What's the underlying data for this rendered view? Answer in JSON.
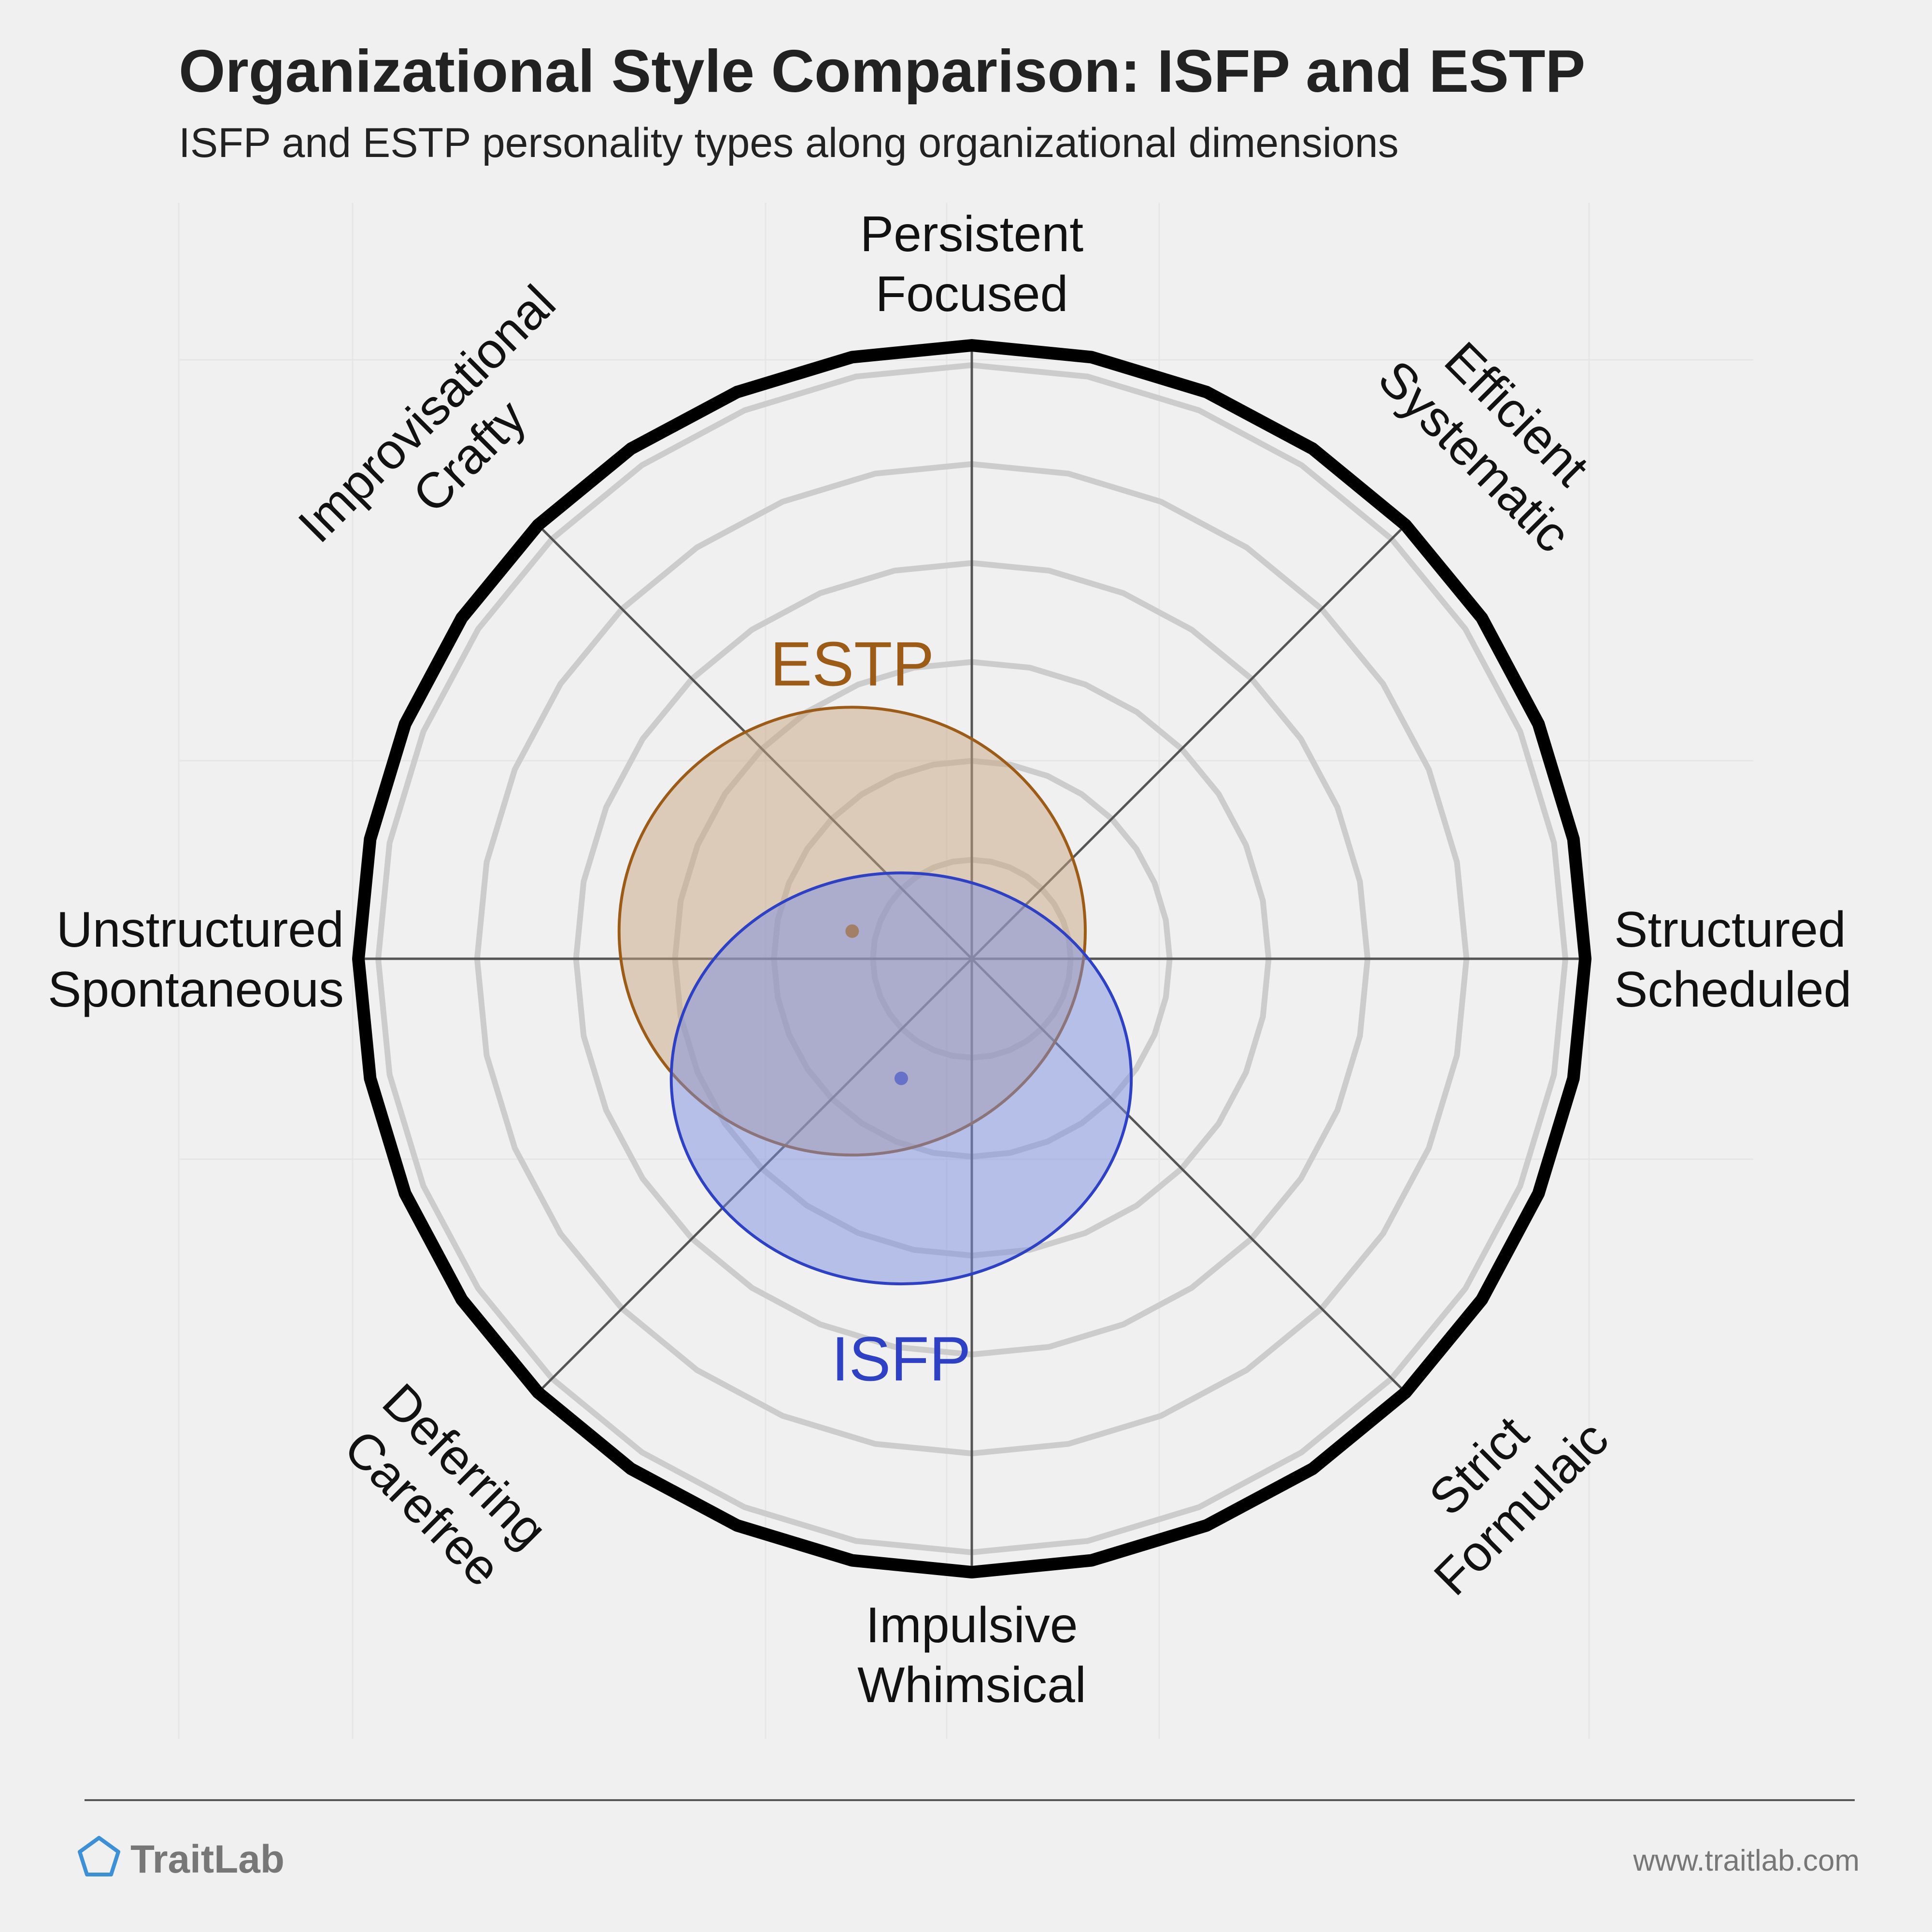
{
  "chart_data": {
    "type": "radar-overlap",
    "title": "Organizational Style Comparison: ISFP and ESTP",
    "subtitle": "ISFP and ESTP personality types along organizational dimensions",
    "axes": [
      {
        "lines": [
          "Persistent",
          "Focused"
        ]
      },
      {
        "lines": [
          "Efficient",
          "Systematic"
        ]
      },
      {
        "lines": [
          "Structured",
          "Scheduled"
        ]
      },
      {
        "lines": [
          "Strict",
          "Formulaic"
        ]
      },
      {
        "lines": [
          "Impulsive",
          "Whimsical"
        ]
      },
      {
        "lines": [
          "Deferring",
          "Carefree"
        ]
      },
      {
        "lines": [
          "Unstructured",
          "Spontaneous"
        ]
      },
      {
        "lines": [
          "Improvisational",
          "Crafty"
        ]
      }
    ],
    "rings": 6,
    "series": [
      {
        "name": "ESTP",
        "center": {
          "x": -0.195,
          "y": 0.045
        },
        "spread": {
          "rx": 0.38,
          "ry": 0.365
        },
        "color": "#9c5b16",
        "fill": "#c8a57f"
      },
      {
        "name": "ISFP",
        "center": {
          "x": -0.115,
          "y": -0.195
        },
        "spread": {
          "rx": 0.375,
          "ry": 0.335
        },
        "color": "#2e41c4",
        "fill": "#7b8ee0"
      }
    ],
    "legend": "inline labels"
  },
  "footer": {
    "brand": "TraitLab",
    "url": "www.traitlab.com"
  },
  "colors": {
    "background": "#f0f0f0",
    "outer_ring": "#000000",
    "grid_ring": "#cccccc",
    "axis_line": "#555555",
    "brand_icon": "#3d8fd6",
    "footer_text": "#777777"
  }
}
